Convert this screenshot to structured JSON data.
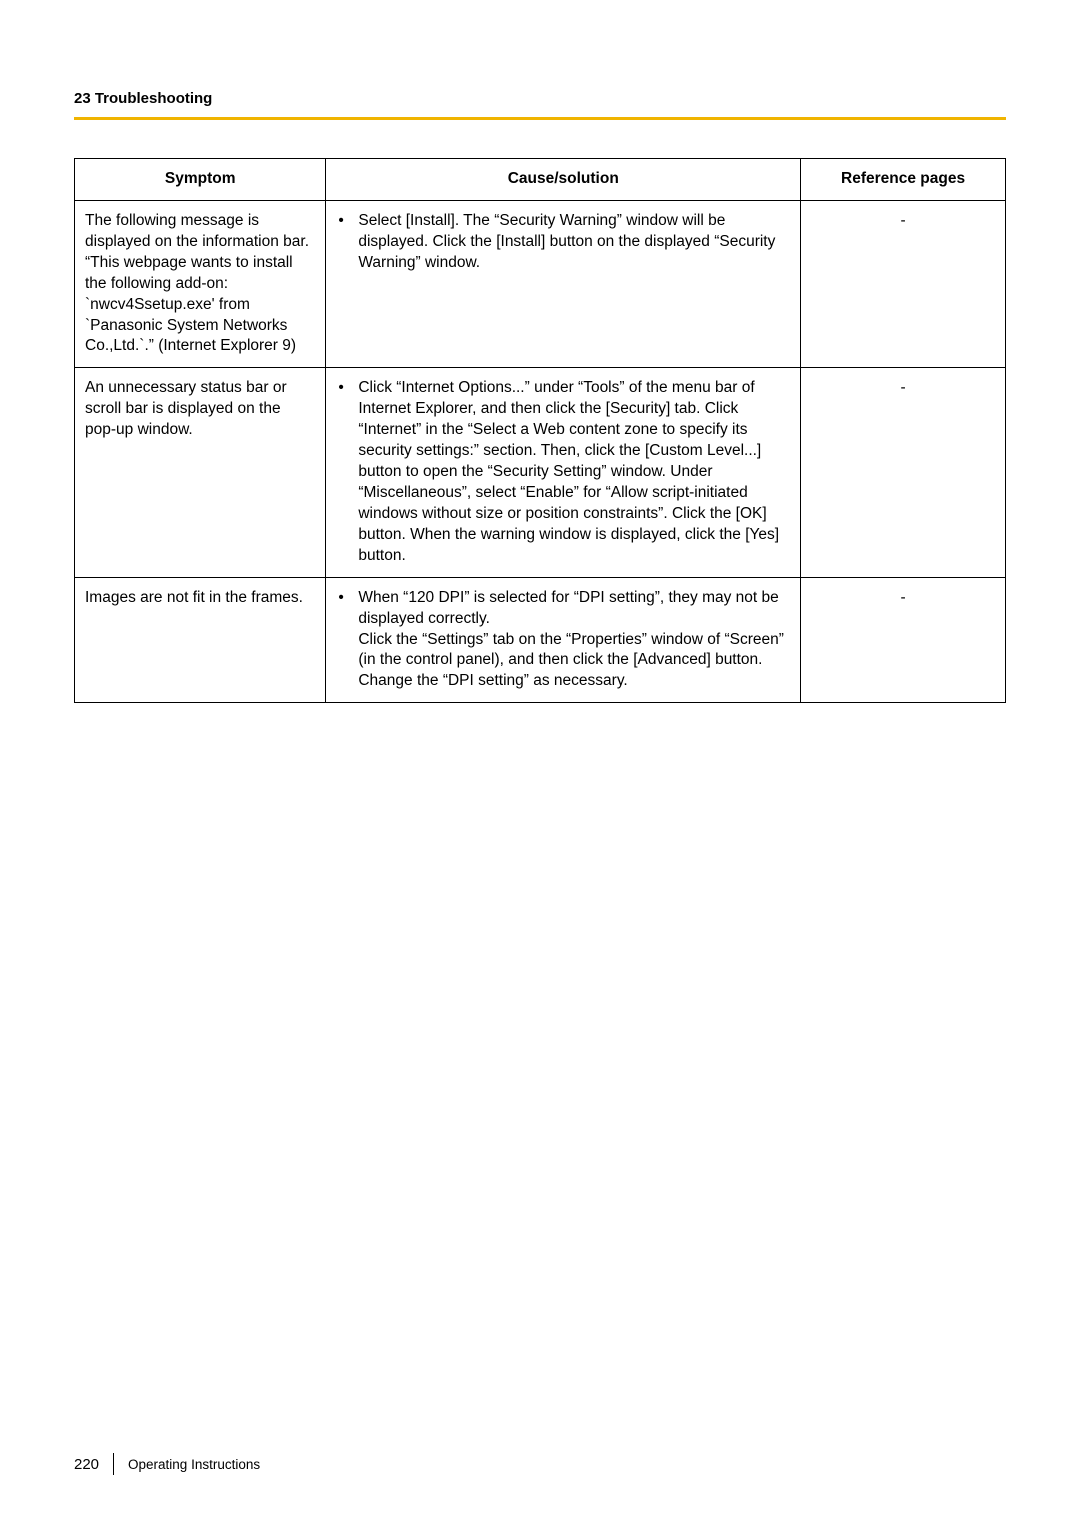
{
  "header": {
    "section_label": "23 Troubleshooting"
  },
  "accent_color": "#f0b400",
  "table": {
    "headers": {
      "symptom": "Symptom",
      "cause": "Cause/solution",
      "reference": "Reference pages"
    },
    "rows": [
      {
        "symptom": "The following message is displayed on the information bar.\n“This webpage wants to install the following add-on: `nwcv4Ssetup.exe' from `Panasonic System Networks Co.,Ltd.`.” (Internet Explorer 9)",
        "cause": "Select [Install]. The “Security Warning” window will be displayed. Click the [Install] button on the displayed “Security Warning” window.",
        "reference": "-"
      },
      {
        "symptom": "An unnecessary status bar or scroll bar is displayed on the pop-up window.",
        "cause": "Click “Internet Options...” under “Tools” of the menu bar of Internet Explorer, and then click the [Security] tab. Click “Internet” in the “Select a Web content zone to specify its security settings:” section. Then, click the [Custom Level...] button to open the “Security Setting” window. Under “Miscellaneous”, select “Enable” for “Allow script-initiated windows without size or position constraints”. Click the [OK] button. When the warning window is displayed, click the [Yes] button.",
        "reference": "-"
      },
      {
        "symptom": "Images are not fit in the frames.",
        "cause": "When “120 DPI” is selected for “DPI setting”, they may not be displayed correctly.\nClick the “Settings” tab on the “Properties” window of “Screen” (in the control panel), and then click the [Advanced] button. Change the “DPI setting” as necessary.",
        "reference": "-"
      }
    ]
  },
  "footer": {
    "page_number": "220",
    "doc_title": "Operating Instructions"
  }
}
